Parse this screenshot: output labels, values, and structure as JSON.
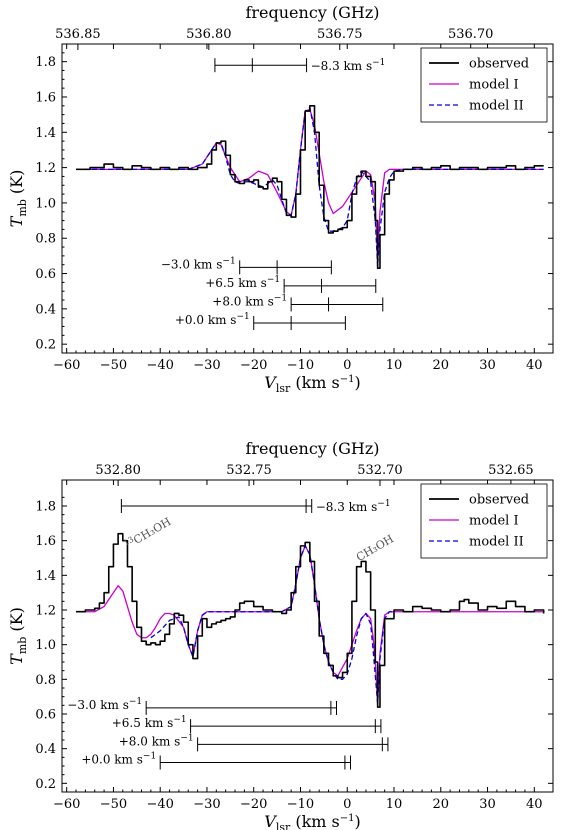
{
  "chart_data": [
    {
      "type": "line",
      "top_axis_label": "frequency (GHz)",
      "top_ticks": [
        "536.85",
        "536.80",
        "536.75",
        "536.70"
      ],
      "top_tick_positions_x": [
        -57.6,
        -29.6,
        -1.6,
        26.4
      ],
      "xlabel_main": "V",
      "xlabel_sub": "lsr",
      "xlabel_unit": "(km s",
      "xlabel_sup": "−1",
      "xlabel_close": ")",
      "ylabel_main": "T",
      "ylabel_sub": "mb",
      "ylabel_unit": "(K)",
      "xlim": [
        -61,
        44
      ],
      "ylim": [
        0.15,
        1.9
      ],
      "xticks": [
        "−60",
        "−50",
        "−40",
        "−30",
        "−20",
        "−10",
        "0",
        "10",
        "20",
        "30",
        "40"
      ],
      "xtick_values": [
        -60,
        -50,
        -40,
        -30,
        -20,
        -10,
        0,
        10,
        20,
        30,
        40
      ],
      "yticks": [
        "0.2",
        "0.4",
        "0.6",
        "0.8",
        "1.0",
        "1.2",
        "1.4",
        "1.6",
        "1.8"
      ],
      "ytick_values": [
        0.2,
        0.4,
        0.6,
        0.8,
        1.0,
        1.2,
        1.4,
        1.6,
        1.8
      ],
      "legend": {
        "placement": "top-right",
        "entries": [
          "observed",
          "model I",
          "model II"
        ]
      },
      "colors": {
        "observed": "#000000",
        "model1": "#cc00cc",
        "model2": "#0000dd"
      },
      "series": [
        {
          "name": "observed",
          "style": "steps",
          "x": [
            -58,
            -55,
            -52,
            -50,
            -48,
            -46,
            -44,
            -42,
            -40,
            -38,
            -36,
            -34,
            -32,
            -30,
            -29,
            -28,
            -27,
            -26,
            -25,
            -24,
            -23,
            -22,
            -21,
            -20,
            -19,
            -18,
            -17,
            -16,
            -15,
            -14,
            -13,
            -12,
            -11,
            -10,
            -9,
            -8,
            -7,
            -6,
            -5,
            -4,
            -3,
            -2,
            -1,
            0,
            1,
            2,
            3,
            4,
            5,
            6,
            6.5,
            7,
            8,
            9,
            10,
            12,
            14,
            16,
            18,
            20,
            22,
            24,
            26,
            28,
            30,
            32,
            34,
            36,
            38,
            40,
            42
          ],
          "y": [
            1.19,
            1.2,
            1.22,
            1.2,
            1.19,
            1.21,
            1.2,
            1.19,
            1.2,
            1.19,
            1.2,
            1.19,
            1.2,
            1.22,
            1.3,
            1.34,
            1.35,
            1.27,
            1.16,
            1.12,
            1.11,
            1.13,
            1.12,
            1.13,
            1.09,
            1.08,
            1.12,
            1.14,
            1.12,
            1.02,
            0.93,
            0.92,
            1.05,
            1.3,
            1.52,
            1.55,
            1.4,
            1.1,
            0.9,
            0.83,
            0.84,
            0.85,
            0.86,
            0.9,
            1.05,
            1.15,
            1.18,
            1.15,
            1.12,
            0.9,
            0.63,
            0.82,
            1.05,
            1.13,
            1.18,
            1.19,
            1.2,
            1.19,
            1.2,
            1.21,
            1.19,
            1.2,
            1.2,
            1.19,
            1.2,
            1.2,
            1.21,
            1.19,
            1.2,
            1.21,
            1.21
          ]
        },
        {
          "name": "model I",
          "style": "line",
          "x": [
            -58,
            -34,
            -31,
            -29,
            -28,
            -27,
            -25,
            -23,
            -21,
            -19,
            -17,
            -15,
            -13,
            -12,
            -11,
            -10,
            -9,
            -8,
            -7,
            -6,
            -5,
            -4,
            -3,
            -1,
            1,
            3,
            4,
            5,
            6,
            6.5,
            7,
            8,
            9,
            10,
            42
          ],
          "y": [
            1.19,
            1.19,
            1.22,
            1.3,
            1.34,
            1.33,
            1.2,
            1.12,
            1.14,
            1.18,
            1.16,
            1.06,
            0.95,
            0.93,
            1.05,
            1.3,
            1.52,
            1.53,
            1.44,
            1.28,
            1.12,
            1.0,
            0.94,
            0.98,
            1.06,
            1.14,
            1.18,
            1.16,
            1.0,
            0.66,
            0.95,
            1.17,
            1.19,
            1.19,
            1.19
          ]
        },
        {
          "name": "model II",
          "style": "dashed",
          "x": [
            -58,
            -34,
            -31,
            -29,
            -28,
            -27,
            -26,
            -25,
            -24,
            -23,
            -22,
            -21,
            -19,
            -18,
            -17,
            -16,
            -15,
            -14,
            -13,
            -12,
            -11,
            -10,
            -9,
            -8,
            -7,
            -6,
            -5,
            -4,
            -3,
            -2,
            -1,
            0,
            1,
            2,
            3,
            4,
            5,
            6,
            6.5,
            7,
            8,
            9,
            10,
            12,
            42
          ],
          "y": [
            1.19,
            1.19,
            1.22,
            1.3,
            1.34,
            1.34,
            1.26,
            1.16,
            1.12,
            1.11,
            1.12,
            1.12,
            1.1,
            1.09,
            1.11,
            1.13,
            1.1,
            1.02,
            0.94,
            0.93,
            1.05,
            1.3,
            1.52,
            1.54,
            1.4,
            1.1,
            0.92,
            0.84,
            0.84,
            0.85,
            0.86,
            0.9,
            1.05,
            1.14,
            1.18,
            1.15,
            1.12,
            0.9,
            0.64,
            0.85,
            1.06,
            1.14,
            1.18,
            1.19,
            1.19
          ]
        }
      ],
      "velocity_markers": [
        {
          "label": "−8.3 km s",
          "sup": "−1",
          "y": 1.78,
          "side": "right",
          "ticks": [
            -28.3,
            -20.3,
            -8.7
          ]
        },
        {
          "label": "−3.0 km s",
          "sup": "−1",
          "y": 0.635,
          "side": "left",
          "ticks": [
            -23.0,
            -15.0,
            -3.4
          ]
        },
        {
          "label": "+6.5 km s",
          "sup": "−1",
          "y": 0.53,
          "side": "left",
          "ticks": [
            -13.5,
            -5.5,
            6.1
          ]
        },
        {
          "label": "+8.0 km s",
          "sup": "−1",
          "y": 0.425,
          "side": "left",
          "ticks": [
            -12.0,
            -4.0,
            7.6
          ]
        },
        {
          "label": "+0.0 km s",
          "sup": "−1",
          "y": 0.32,
          "side": "left",
          "ticks": [
            -20.0,
            -12.0,
            -0.4
          ]
        }
      ],
      "annotations": []
    },
    {
      "type": "line",
      "top_axis_label": "frequency (GHz)",
      "top_ticks": [
        "532.80",
        "532.75",
        "532.70",
        "532.65"
      ],
      "top_tick_positions_x": [
        -49,
        -21,
        7,
        35
      ],
      "xlabel_main": "V",
      "xlabel_sub": "lsr",
      "xlabel_unit": "(km s",
      "xlabel_sup": "−1",
      "xlabel_close": ")",
      "ylabel_main": "T",
      "ylabel_sub": "mb",
      "ylabel_unit": "(K)",
      "xlim": [
        -61,
        44
      ],
      "ylim": [
        0.15,
        1.95
      ],
      "xticks": [
        "−60",
        "−50",
        "−40",
        "−30",
        "−20",
        "−10",
        "0",
        "10",
        "20",
        "30",
        "40"
      ],
      "xtick_values": [
        -60,
        -50,
        -40,
        -30,
        -20,
        -10,
        0,
        10,
        20,
        30,
        40
      ],
      "yticks": [
        "0.2",
        "0.4",
        "0.6",
        "0.8",
        "1.0",
        "1.2",
        "1.4",
        "1.6",
        "1.8"
      ],
      "ytick_values": [
        0.2,
        0.4,
        0.6,
        0.8,
        1.0,
        1.2,
        1.4,
        1.6,
        1.8
      ],
      "legend": {
        "placement": "top-right",
        "entries": [
          "observed",
          "model I",
          "model II"
        ]
      },
      "colors": {
        "observed": "#000000",
        "model1": "#cc00cc",
        "model2": "#0000dd"
      },
      "series": [
        {
          "name": "observed",
          "style": "steps",
          "x": [
            -58,
            -56,
            -54,
            -53,
            -52,
            -51,
            -50,
            -49,
            -48,
            -47,
            -46,
            -45,
            -44,
            -43,
            -42,
            -41,
            -40,
            -39,
            -38,
            -37,
            -36,
            -35,
            -34,
            -33,
            -32,
            -31,
            -30,
            -29,
            -28,
            -27,
            -26,
            -25,
            -24,
            -23,
            -22,
            -20,
            -18,
            -16,
            -14,
            -13,
            -12,
            -11,
            -10,
            -9,
            -8,
            -7,
            -6,
            -5,
            -4,
            -3,
            -2,
            -1,
            0,
            1,
            2,
            3,
            4,
            5,
            6,
            6.5,
            7,
            8,
            10,
            12,
            14,
            16,
            18,
            20,
            22,
            24,
            25,
            26,
            28,
            30,
            32,
            34,
            36,
            38,
            40,
            42
          ],
          "y": [
            1.19,
            1.2,
            1.21,
            1.24,
            1.3,
            1.45,
            1.58,
            1.64,
            1.6,
            1.45,
            1.25,
            1.1,
            1.02,
            1.0,
            1.01,
            1.0,
            1.02,
            1.06,
            1.12,
            1.18,
            1.17,
            1.13,
            1.0,
            0.92,
            1.05,
            1.15,
            1.1,
            1.12,
            1.13,
            1.14,
            1.15,
            1.16,
            1.2,
            1.24,
            1.25,
            1.22,
            1.2,
            1.19,
            1.18,
            1.2,
            1.3,
            1.45,
            1.57,
            1.59,
            1.48,
            1.25,
            1.05,
            0.95,
            0.88,
            0.82,
            0.81,
            0.84,
            0.95,
            1.25,
            1.45,
            1.48,
            1.42,
            1.2,
            0.9,
            0.64,
            0.88,
            1.15,
            1.2,
            1.19,
            1.22,
            1.21,
            1.2,
            1.19,
            1.2,
            1.25,
            1.26,
            1.24,
            1.2,
            1.22,
            1.21,
            1.25,
            1.22,
            1.19,
            1.2,
            1.18
          ]
        },
        {
          "name": "model I",
          "style": "line",
          "x": [
            -58,
            -54,
            -52,
            -50,
            -49,
            -48,
            -47,
            -46,
            -45,
            -44,
            -43,
            -42,
            -41,
            -40,
            -39,
            -38,
            -37,
            -35,
            -34,
            -33,
            -32,
            -31,
            -30,
            -14,
            -12,
            -11,
            -10,
            -9,
            -8,
            -7,
            -6,
            -5,
            -4,
            -3,
            -2,
            0,
            2,
            3,
            4,
            5,
            5.5,
            6,
            6.5,
            7,
            8,
            9,
            10,
            42
          ],
          "y": [
            1.19,
            1.19,
            1.22,
            1.3,
            1.34,
            1.31,
            1.22,
            1.13,
            1.06,
            1.04,
            1.04,
            1.06,
            1.1,
            1.15,
            1.18,
            1.18,
            1.17,
            1.1,
            1.0,
            0.93,
            1.08,
            1.17,
            1.19,
            1.19,
            1.22,
            1.35,
            1.5,
            1.57,
            1.52,
            1.35,
            1.15,
            1.0,
            0.9,
            0.84,
            0.82,
            0.92,
            1.08,
            1.15,
            1.18,
            1.15,
            1.05,
            0.9,
            0.66,
            0.95,
            1.17,
            1.19,
            1.19,
            1.19
          ]
        },
        {
          "name": "model II",
          "style": "dashed",
          "x": [
            -42,
            -40,
            -38,
            -36,
            -35,
            -34,
            -33,
            -32,
            -31,
            -30,
            -14,
            -12,
            -11,
            -10,
            -9,
            -8,
            -7,
            -6,
            -5,
            -4,
            -3,
            -2,
            -1,
            0,
            1,
            2,
            3,
            4,
            5,
            5.5,
            6,
            6.5,
            7,
            8,
            9,
            10
          ],
          "y": [
            1.04,
            1.08,
            1.14,
            1.16,
            1.1,
            1.0,
            0.93,
            1.08,
            1.17,
            1.19,
            1.19,
            1.22,
            1.35,
            1.5,
            1.57,
            1.52,
            1.35,
            1.15,
            1.0,
            0.9,
            0.84,
            0.8,
            0.8,
            0.83,
            0.92,
            1.05,
            1.15,
            1.18,
            1.12,
            0.98,
            0.82,
            0.66,
            0.92,
            1.15,
            1.19,
            1.19
          ]
        }
      ],
      "velocity_markers": [
        {
          "label": "−8.3 km s",
          "sup": "−1",
          "y": 1.8,
          "side": "right",
          "ticks": [
            -48.3,
            -8.8,
            -7.6
          ]
        },
        {
          "label": "−3.0 km s",
          "sup": "−1",
          "y": 0.635,
          "side": "left",
          "ticks": [
            -43.0,
            -3.5,
            -2.3
          ]
        },
        {
          "label": "+6.5 km s",
          "sup": "−1",
          "y": 0.53,
          "side": "left",
          "ticks": [
            -33.5,
            6.0,
            7.2
          ]
        },
        {
          "label": "+8.0 km s",
          "sup": "−1",
          "y": 0.425,
          "side": "left",
          "ticks": [
            -32.0,
            7.5,
            8.7
          ]
        },
        {
          "label": "+0.0 km s",
          "sup": "−1",
          "y": 0.32,
          "side": "left",
          "ticks": [
            -40.0,
            -0.5,
            0.7
          ]
        }
      ],
      "annotations": [
        {
          "pre": "",
          "iso": "13",
          "text": "CH₃OH",
          "x": -47,
          "y": 1.55
        },
        {
          "pre": "",
          "iso": "",
          "text": "CH₃OH",
          "x": 2.5,
          "y": 1.48
        }
      ]
    }
  ]
}
